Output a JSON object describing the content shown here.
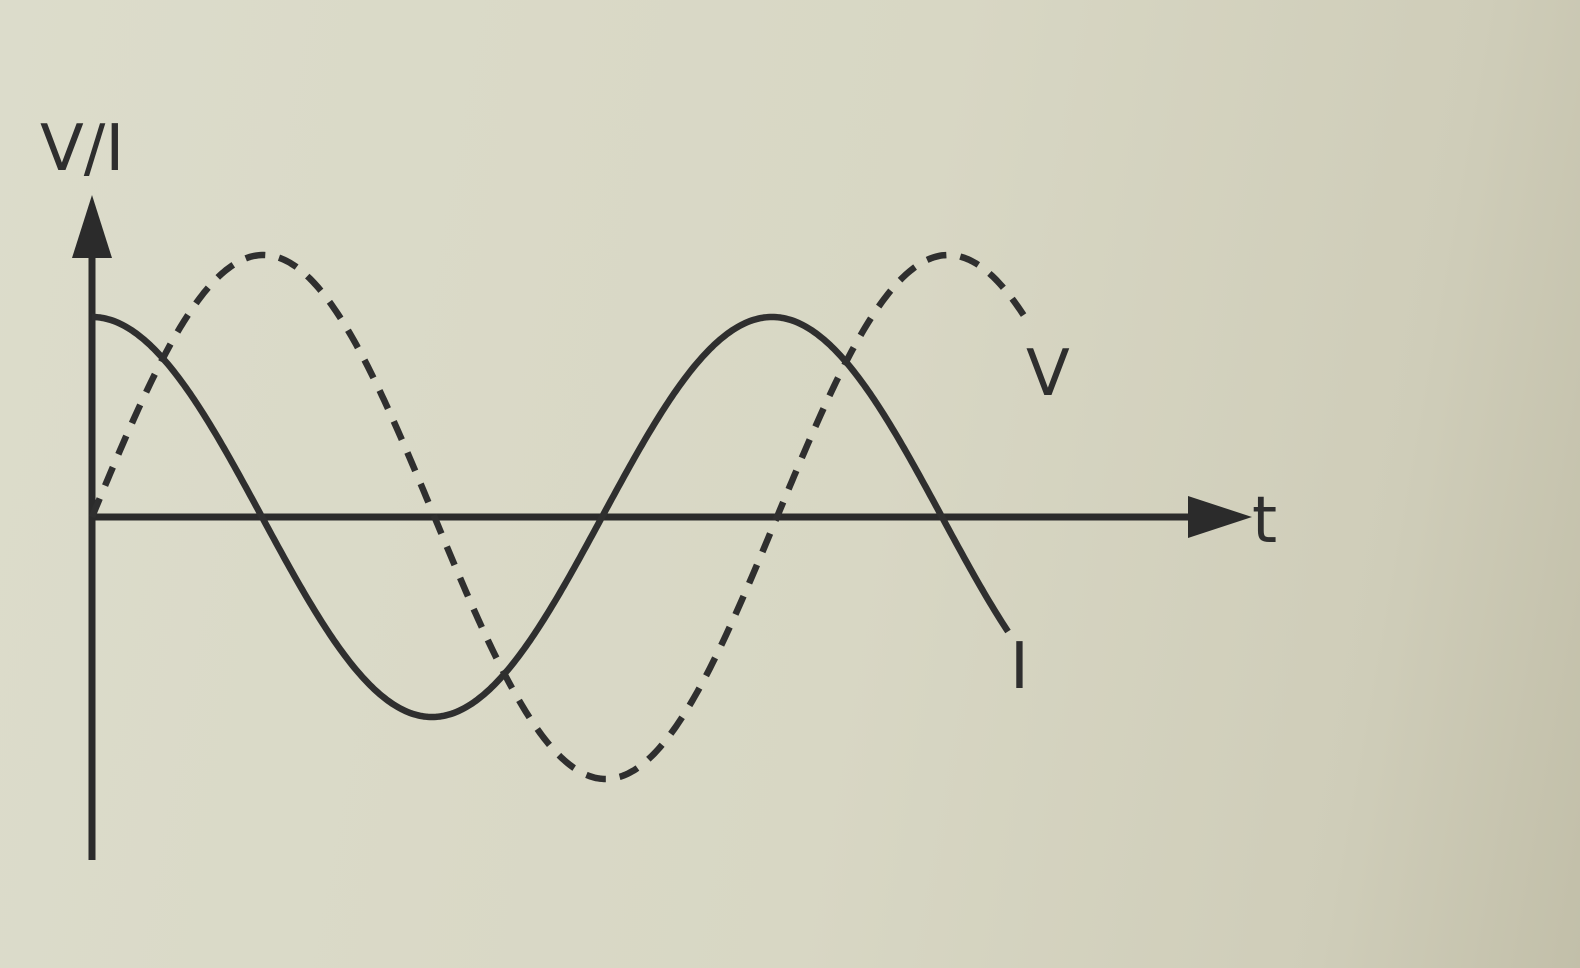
{
  "figure": {
    "y_axis_label": "V/I",
    "x_axis_label": "t",
    "voltage_label": "V",
    "current_label": "I"
  },
  "curves": {
    "voltage": {
      "style": "dashed",
      "shape": "sine"
    },
    "current": {
      "style": "solid",
      "shape": "cosine"
    }
  },
  "colors": {
    "ink": "#2b2b2b",
    "paper": "#d9d8c7"
  }
}
